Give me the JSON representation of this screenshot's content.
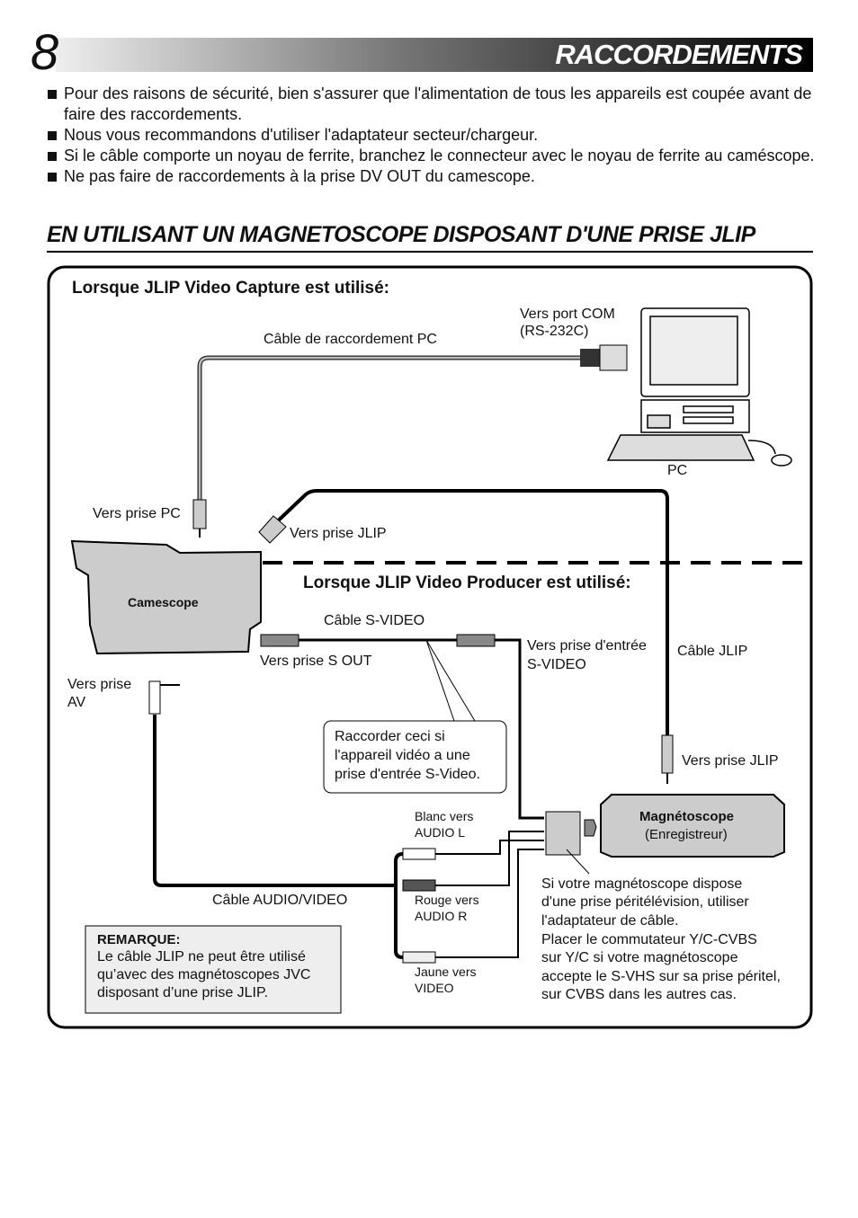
{
  "header": {
    "page_number": "8",
    "title": "RACCORDEMENTS"
  },
  "bullets": [
    "Pour des raisons de sécurité, bien s'assurer que l'alimentation de tous les appareils est coupée avant de faire des raccordements.",
    "Nous vous recommandons d'utiliser l'adaptateur secteur/chargeur.",
    "Si le câble comporte un noyau de ferrite, branchez le connecteur avec le noyau de ferrite au caméscope.",
    "Ne pas faire de raccordements à la prise DV OUT du camescope."
  ],
  "section_title": "EN UTILISANT UN MAGNETOSCOPE DISPOSANT D'UNE PRISE JLIP",
  "diagram": {
    "capture_heading": "Lorsque JLIP Video Capture est utilisé:",
    "producer_heading": "Lorsque JLIP Video Producer est utilisé:",
    "pc_cable": "Câble de raccordement PC",
    "com_port": [
      "Vers port COM",
      "(RS-232C)"
    ],
    "pc": "PC",
    "pc_jack": "Vers prise PC",
    "jlip_jack_cam": "Vers prise JLIP",
    "camcorder": "Camescope",
    "svideo_cable": "Câble S-VIDEO",
    "sout": "Vers prise S OUT",
    "svideo_in": [
      "Vers prise d'entrée",
      "S-VIDEO"
    ],
    "jlip_cable": "Câble JLIP",
    "av_jack": [
      "Vers prise",
      "AV"
    ],
    "callout": [
      "Raccorder ceci si",
      "l'appareil vidéo a une",
      "prise d'entrée S-Video."
    ],
    "jlip_jack_vcr": "Vers prise JLIP",
    "white": [
      "Blanc vers",
      "AUDIO L"
    ],
    "red": [
      "Rouge vers",
      "AUDIO R"
    ],
    "yellow": [
      "Jaune vers",
      "VIDEO"
    ],
    "vcr": [
      "Magnétoscope",
      "(Enregistreur)"
    ],
    "av_cable": "Câble AUDIO/VIDEO",
    "scart_note": [
      "Si votre magnétoscope dispose",
      "d'une prise péritélévision, utiliser",
      "l'adaptateur de câble.",
      "Placer le commutateur Y/C-CVBS",
      "sur Y/C si votre magnétoscope",
      "accepte le S-VHS sur sa prise péritel,",
      "sur CVBS dans les autres cas."
    ],
    "note": {
      "title": "REMARQUE:",
      "lines": [
        "Le câble JLIP ne peut être utilisé",
        "qu’avec des magnétoscopes JVC",
        "disposant d’une prise JLIP."
      ]
    }
  }
}
